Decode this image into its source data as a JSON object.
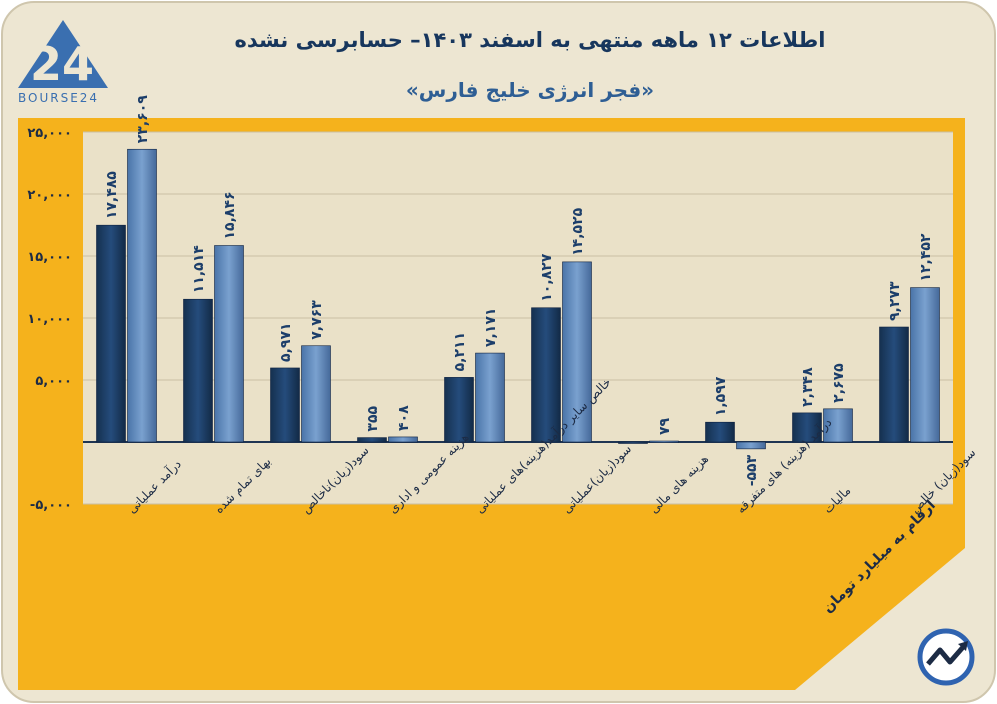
{
  "header": {
    "title": "اطلاعات ۱۲ ماهه منتهی به اسفند ۱۴۰۳– حسابرسی نشده",
    "subtitle": "«فجر انرژی خلیج فارس»",
    "logo_text": "BOURSE24",
    "logo_mark": "24"
  },
  "footer": {
    "units_note": "ارقام به میلیارد تومان"
  },
  "colors": {
    "page_bg": "#ede6d2",
    "frame_orange": "#f5b21c",
    "plot_bg": "#eae1c8",
    "series_dark": "#1d3e66",
    "series_light": "#5b86ba",
    "label_text": "#1c3e6a"
  },
  "chart_data": {
    "type": "bar",
    "categories": [
      "درآمد عملیاتی",
      "بهای تمام شده",
      "سود(زیان)ناخالص",
      "هزینه عمومی و اداری",
      "خالص سایر درآمد(هزینه)های عملیاتی",
      "سود(زیان)عملیاتی",
      "هزینه های مالی",
      "درآمد (هزینه) های متفرقه",
      "مالیات",
      "سود(زیان) خالص"
    ],
    "series": [
      {
        "values": [
          17485,
          11514,
          5971,
          355,
          5211,
          10827,
          0,
          1597,
          2348,
          9273
        ],
        "labels": [
          "۱۷,۴۸۵",
          "۱۱,۵۱۴",
          "۵,۹۷۱",
          "۳۵۵",
          "۵,۲۱۱",
          "۱۰,۸۲۷",
          "",
          "۱,۵۹۷",
          "۲,۳۴۸",
          "۹,۲۷۳"
        ]
      },
      {
        "values": [
          23609,
          15846,
          7763,
          408,
          7171,
          14525,
          79,
          -553,
          2675,
          12452
        ],
        "labels": [
          "۲۳,۶۰۹",
          "۱۵,۸۴۶",
          "۷,۷۶۳",
          "۴۰۸",
          "۷,۱۷۱",
          "۱۴,۵۲۵",
          "۷۹",
          "-۵۵۳",
          "۲,۶۷۵",
          "۱۲,۴۵۲"
        ]
      }
    ],
    "ylim": [
      -5000,
      25000
    ],
    "y_ticks": [
      -5000,
      0,
      5000,
      10000,
      15000,
      20000,
      25000
    ],
    "y_tick_labels": [
      "-۵,۰۰۰",
      "",
      "۵,۰۰۰",
      "۱۰,۰۰۰",
      "۱۵,۰۰۰",
      "۲۰,۰۰۰",
      "۲۵,۰۰۰"
    ],
    "grid": true,
    "legend": "none",
    "xlabel": "",
    "ylabel": ""
  }
}
